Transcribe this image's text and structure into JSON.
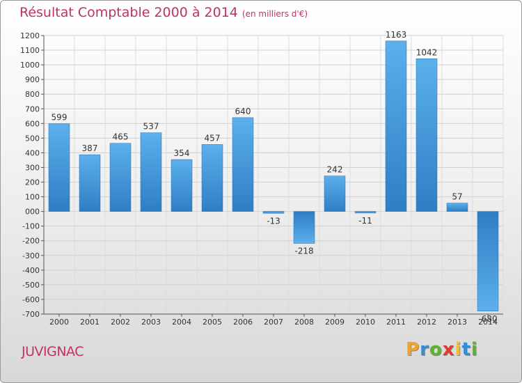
{
  "chart_data": {
    "type": "bar",
    "title": "Résultat Comptable 2000 à 2014",
    "subtitle": "(en milliers d'€)",
    "categories": [
      "2000",
      "2001",
      "2002",
      "2003",
      "2004",
      "2005",
      "2006",
      "2007",
      "2008",
      "2009",
      "2010",
      "2011",
      "2012",
      "2013",
      "2014"
    ],
    "values": [
      599,
      387,
      465,
      537,
      354,
      457,
      640,
      -13,
      -218,
      242,
      -11,
      1163,
      1042,
      57,
      -680
    ],
    "value_labels": [
      "599",
      "387",
      "465",
      "537",
      "354",
      "457",
      "640",
      "-13",
      "-218",
      "242",
      "-11",
      "1163",
      "1042",
      "57",
      "-680"
    ],
    "ylim": [
      -700,
      1200
    ],
    "yticks": [
      -700,
      -600,
      -500,
      -400,
      -300,
      -200,
      -100,
      0,
      100,
      200,
      300,
      400,
      500,
      600,
      700,
      800,
      900,
      1000,
      1100,
      1200
    ],
    "ytick_labels": [
      "-700",
      "-600",
      "-500",
      "-400",
      "-300",
      "-200",
      "-100",
      "000",
      "100",
      "200",
      "300",
      "400",
      "500",
      "600",
      "700",
      "800",
      "900",
      "1000",
      "1100",
      "1200"
    ],
    "grid": true,
    "legend": "none",
    "bar_color": "#4a9fe0",
    "bar_color_dark": "#2f7cc0"
  },
  "footer": {
    "city": "JUVIGNAC",
    "logo_letters": [
      "P",
      "r",
      "o",
      "x",
      "i",
      "t",
      "i"
    ],
    "logo_colors": [
      "#f0a22e",
      "#2f8fd6",
      "#5cb531",
      "#e23a2e",
      "#f0c22e",
      "#2f8fd6",
      "#5cb531"
    ]
  }
}
